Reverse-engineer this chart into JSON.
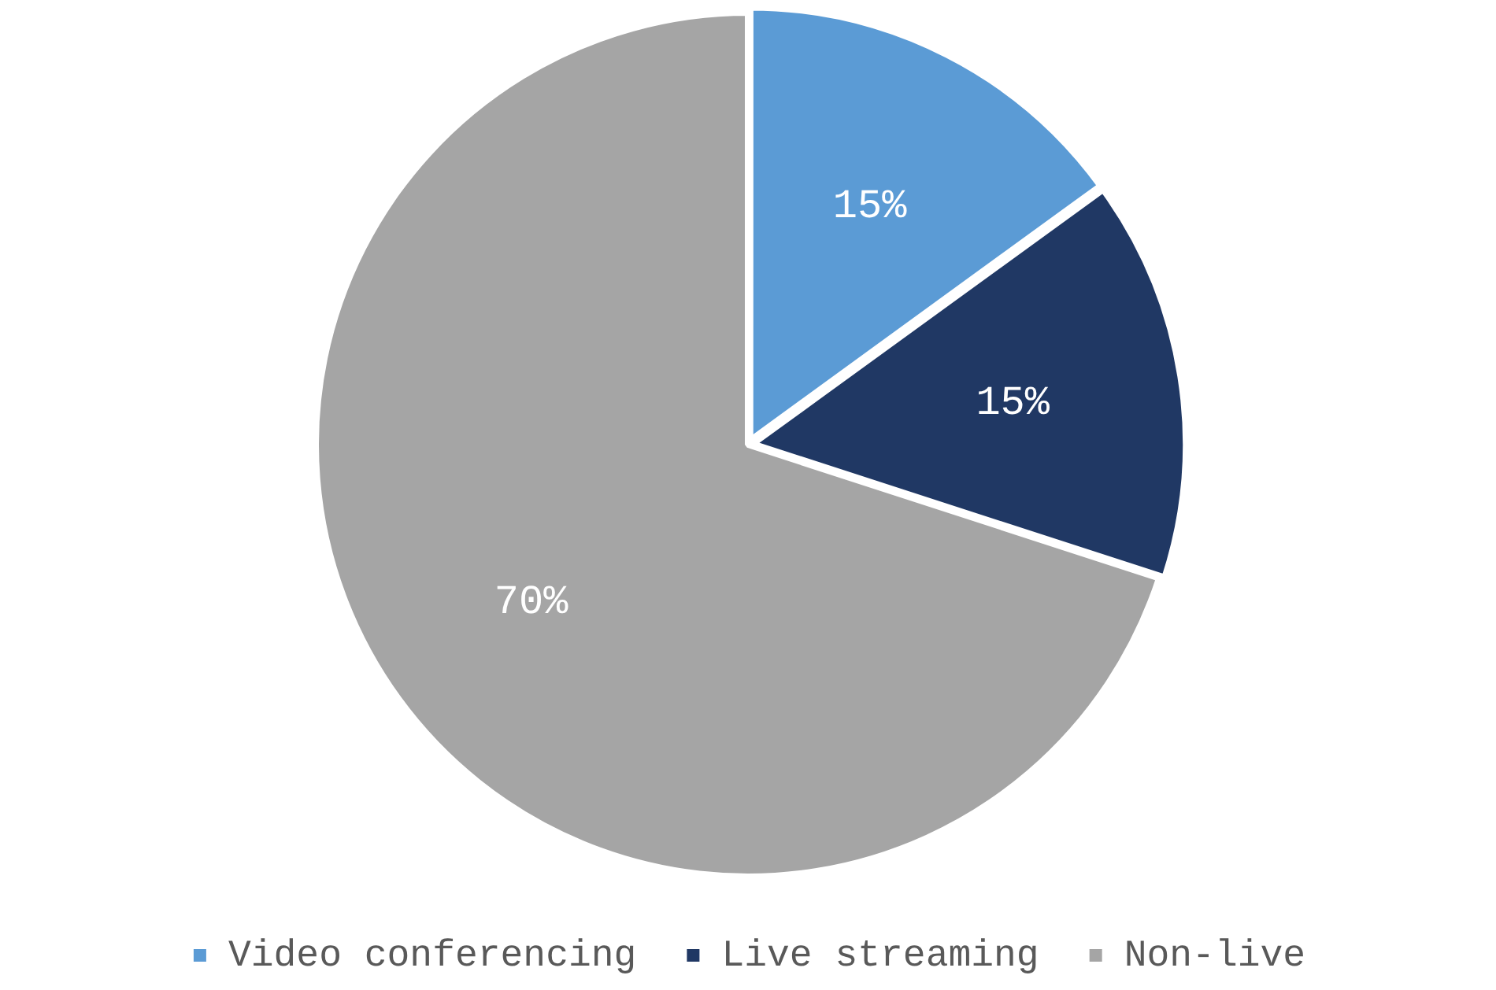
{
  "chart_data": {
    "type": "pie",
    "categories": [
      "Video conferencing",
      "Live streaming",
      "Non-live"
    ],
    "values": [
      15,
      15,
      70
    ],
    "colors": [
      "#5b9bd5",
      "#203864",
      "#a5a5a5"
    ],
    "value_labels": [
      "15%",
      "15%",
      "70%"
    ],
    "legend": "bottom"
  }
}
